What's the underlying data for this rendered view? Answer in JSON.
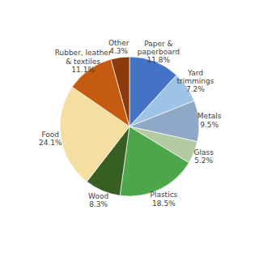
{
  "chart_data": {
    "type": "pie",
    "categories": [
      "Paper &\npaperboard\n11.8%",
      "Yard\ntrimmings\n7.2%",
      "Metals\n9.5%",
      "Glass\n5.2%",
      "Plastics\n18.5%",
      "Wood\n8.3%",
      "Food\n24.1%",
      "Rubber, leather\n& textiles\n11.1%",
      "Other\n4.3%"
    ],
    "values": [
      11.8,
      7.2,
      9.5,
      5.2,
      18.5,
      8.3,
      24.1,
      11.1,
      4.3
    ],
    "colors": [
      "#4472C4",
      "#9DC3E6",
      "#8FA8C8",
      "#B5C9A0",
      "#4EA64B",
      "#375E23",
      "#F5DFA0",
      "#C55A11",
      "#8B3A0C"
    ]
  }
}
